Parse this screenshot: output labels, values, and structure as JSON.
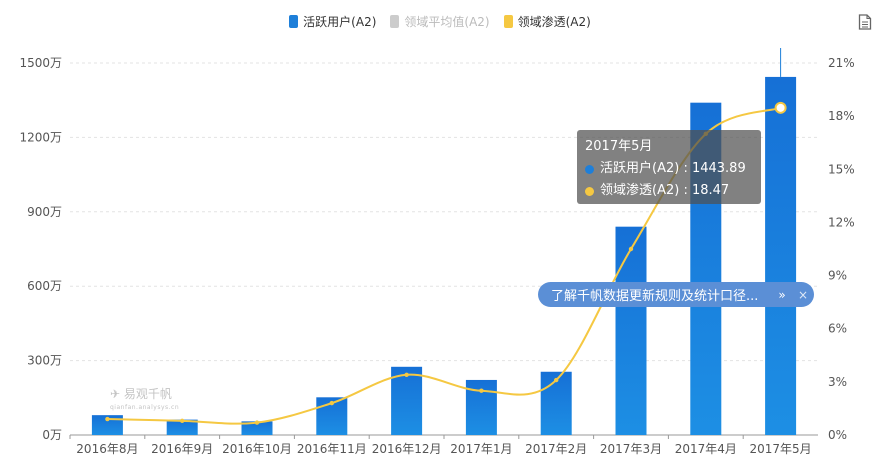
{
  "legend": {
    "items": [
      {
        "label": "活跃用户(A2)",
        "color": "#1e7fd9",
        "muted": false
      },
      {
        "label": "领域平均值(A2)",
        "color": "#cccccc",
        "muted": true
      },
      {
        "label": "领域渗透(A2)",
        "color": "#f5c842",
        "muted": false
      }
    ]
  },
  "chart_data": {
    "type": "bar",
    "categories": [
      "2016年8月",
      "2016年9月",
      "2016年10月",
      "2016年11月",
      "2016年12月",
      "2017年1月",
      "2017年2月",
      "2017年3月",
      "2017年4月",
      "2017年5月"
    ],
    "series": [
      {
        "name": "活跃用户(A2)",
        "type": "bar",
        "axis": "left",
        "values": [
          80,
          62,
          55,
          152,
          275,
          222,
          255,
          840,
          1340,
          1443.89
        ]
      },
      {
        "name": "领域渗透(A2)",
        "type": "line",
        "axis": "right",
        "values": [
          0.9,
          0.8,
          0.7,
          1.8,
          3.4,
          2.5,
          3.1,
          10.5,
          17.0,
          18.47
        ]
      }
    ],
    "y_left": {
      "ticks": [
        0,
        300,
        600,
        900,
        1200,
        1500
      ],
      "tick_labels": [
        "0万",
        "300万",
        "600万",
        "900万",
        "1200万",
        "1500万"
      ],
      "ylim": [
        0,
        1500
      ]
    },
    "y_right": {
      "ticks": [
        0,
        3,
        6,
        9,
        12,
        15,
        18,
        21
      ],
      "tick_labels": [
        "0%",
        "3%",
        "6%",
        "9%",
        "12%",
        "15%",
        "18%",
        "21%"
      ],
      "ylim": [
        0,
        21
      ]
    },
    "grid": true,
    "highlight_index": 9
  },
  "tooltip": {
    "title": "2017年5月",
    "rows": [
      {
        "text": "活跃用户(A2) : 1443.89",
        "color": "#1e7fd9"
      },
      {
        "text": "领域渗透(A2) : 18.47",
        "color": "#f5c842"
      }
    ]
  },
  "banner": {
    "text": "了解千帆数据更新规则及统计口径...",
    "more": "»",
    "close": "×"
  },
  "watermark": {
    "name": "易观千帆",
    "sub": "qianfan.analysys.cn"
  }
}
